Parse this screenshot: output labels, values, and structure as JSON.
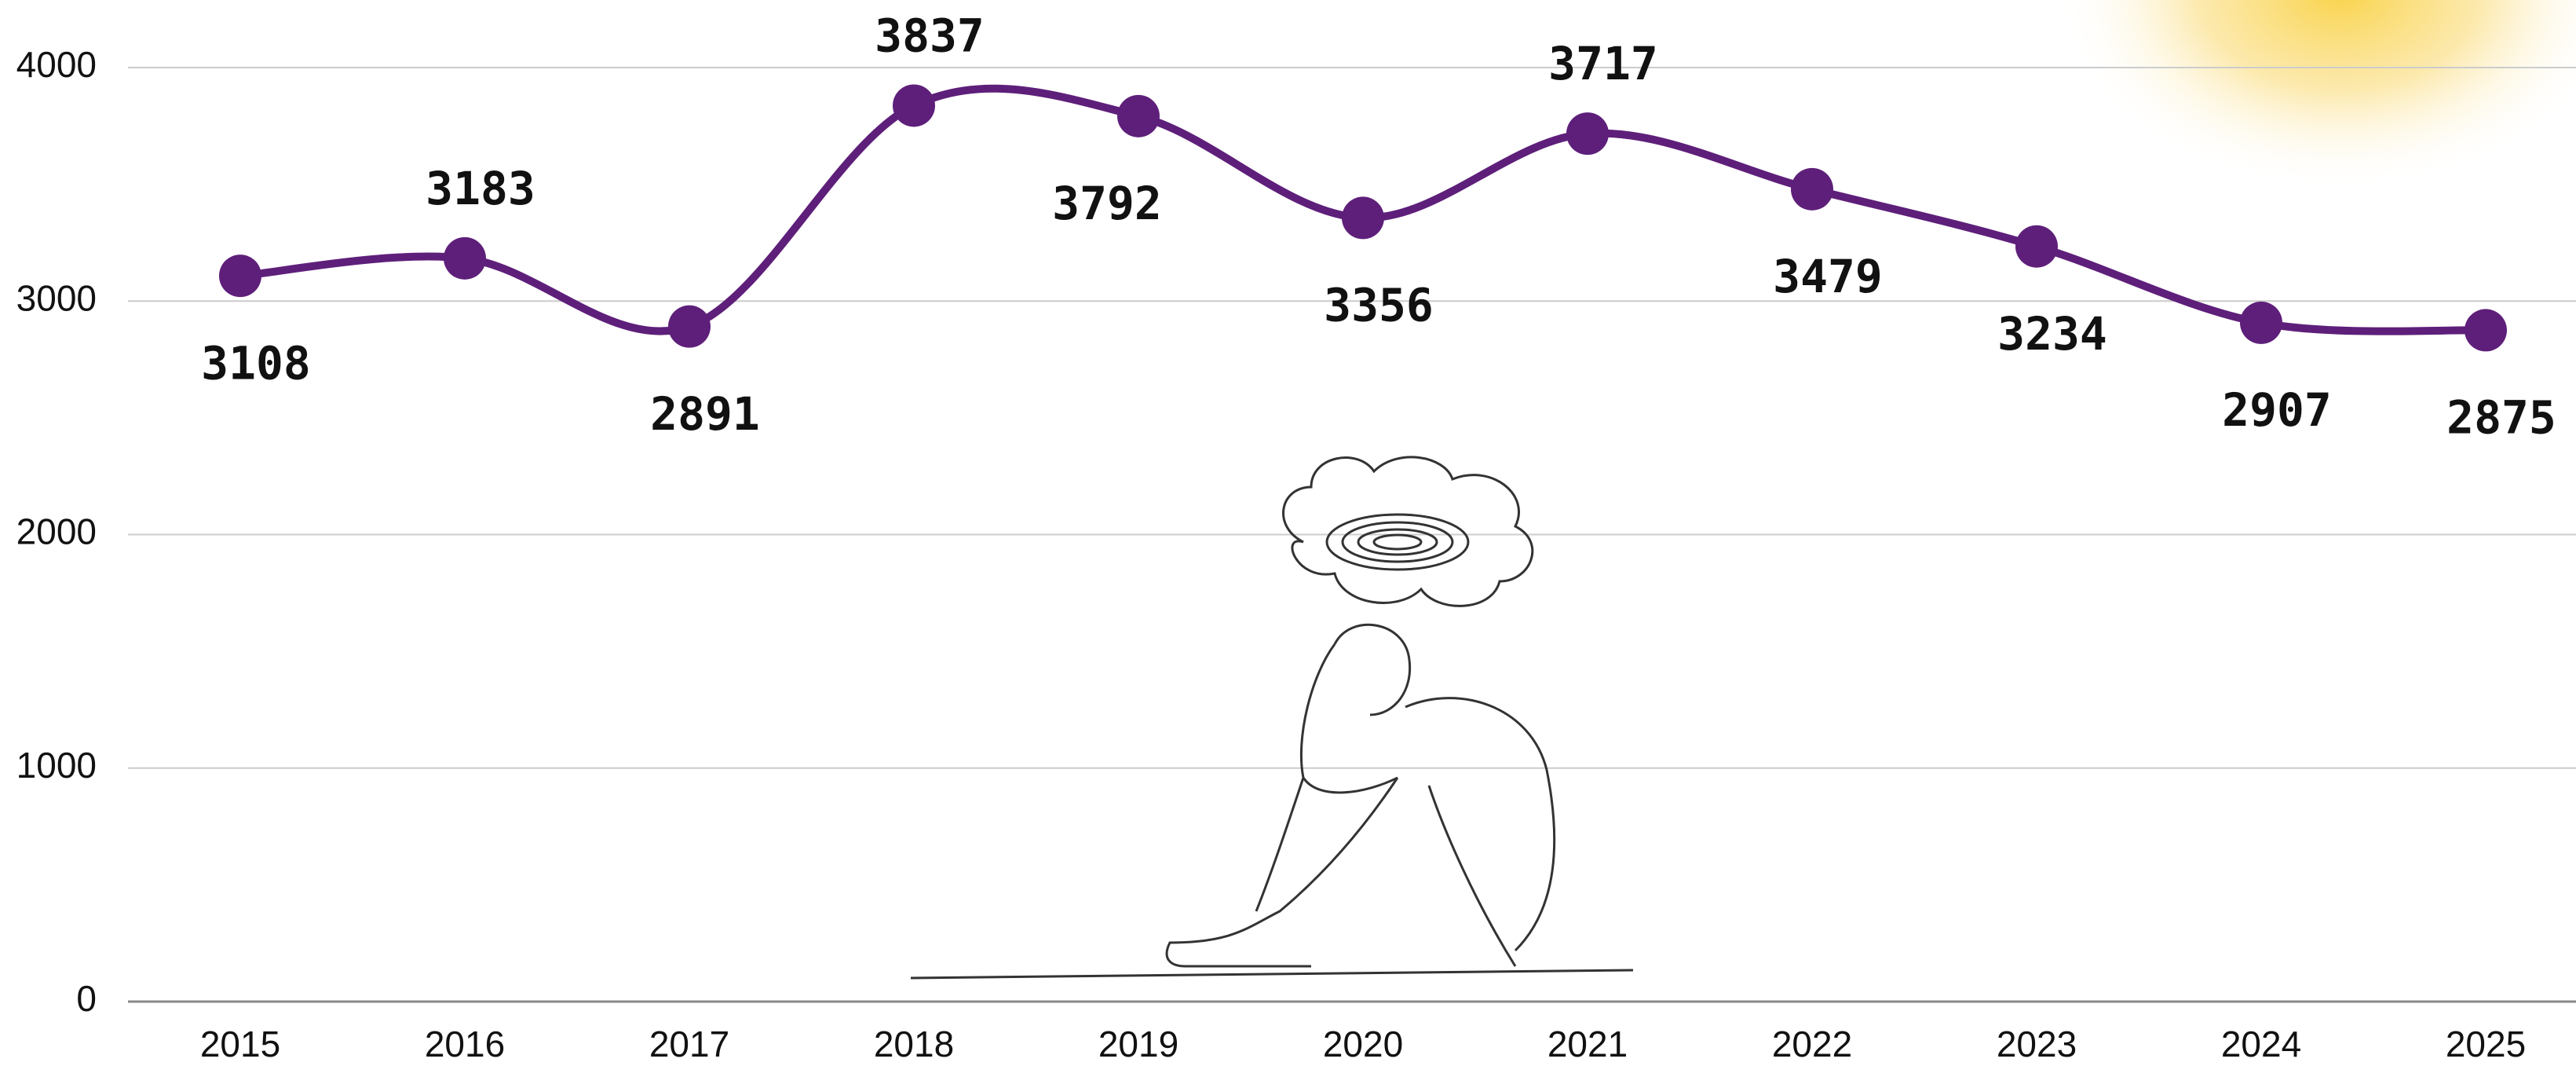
{
  "chart_data": {
    "type": "line",
    "categories": [
      "2015",
      "2016",
      "2017",
      "2018",
      "2019",
      "2020",
      "2021",
      "2022",
      "2023",
      "2024",
      "2025"
    ],
    "series": [
      {
        "color": "#5e1f7a",
        "values": [
          3108,
          3183,
          2891,
          3837,
          3792,
          3356,
          3717,
          3479,
          3234,
          2907,
          2875
        ]
      }
    ],
    "ylim": [
      0,
      4000
    ],
    "yticks": [
      0,
      1000,
      2000,
      3000,
      4000
    ],
    "grid": true,
    "data_labels": true
  }
}
